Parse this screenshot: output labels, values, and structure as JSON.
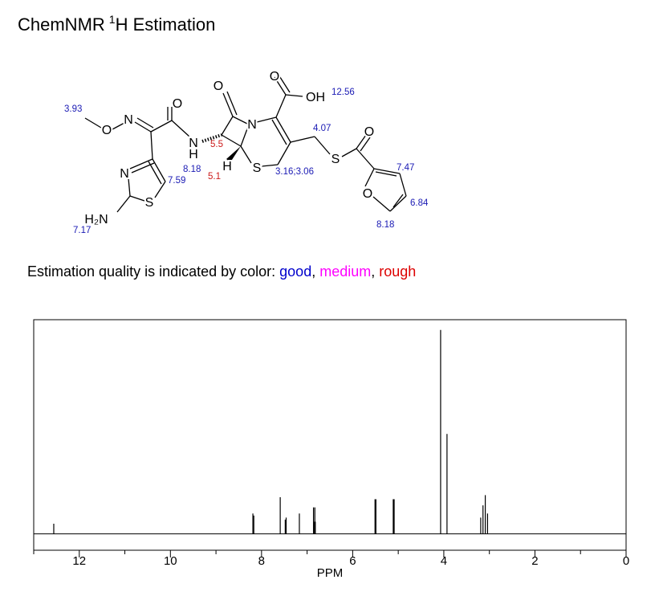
{
  "header": {
    "title": {
      "before": "ChemNMR",
      "superscript": "1",
      "after": "H Estimation"
    }
  },
  "molecule": {
    "atoms": [
      "O",
      "N",
      "O",
      "N",
      "H",
      "O",
      "N",
      "H",
      "S",
      "O",
      "OH",
      "S",
      "O",
      "O",
      "N",
      "S",
      "H₂N"
    ],
    "shifts": [
      {
        "text": "3.93",
        "color": "#1a1ab4"
      },
      {
        "text": "8.18",
        "color": "#1a1ab4"
      },
      {
        "text": "7.59",
        "color": "#1a1ab4"
      },
      {
        "text": "7.17",
        "color": "#1a1ab4"
      },
      {
        "text": "5.5",
        "color": "#cc1a1a"
      },
      {
        "text": "5.1",
        "color": "#cc1a1a"
      },
      {
        "text": "12.56",
        "color": "#1a1ab4"
      },
      {
        "text": "4.07",
        "color": "#1a1ab4"
      },
      {
        "text": "3.16;3.06",
        "color": "#1a1ab4"
      },
      {
        "text": "7.47",
        "color": "#1a1ab4"
      },
      {
        "text": "6.84",
        "color": "#1a1ab4"
      },
      {
        "text": "8.18",
        "color": "#1a1ab4"
      }
    ]
  },
  "quality": {
    "prefix": "Estimation quality is indicated by color:",
    "separator": ",",
    "levels": [
      {
        "text": "good",
        "color": "#0000cc"
      },
      {
        "text": "medium",
        "color": "#ff00ff"
      },
      {
        "text": "rough",
        "color": "#dd0000"
      }
    ]
  },
  "chart_data": {
    "type": "spectrum",
    "x_label": "PPM",
    "x": [
      12.56,
      8.19,
      8.17,
      7.59,
      7.48,
      7.46,
      7.17,
      6.86,
      6.85,
      6.83,
      6.82,
      5.51,
      5.49,
      5.11,
      5.09,
      4.07,
      3.93,
      3.19,
      3.14,
      3.09,
      3.04
    ],
    "values": [
      0.05,
      0.1,
      0.09,
      0.18,
      0.07,
      0.08,
      0.1,
      0.13,
      0.06,
      0.13,
      0.06,
      0.17,
      0.17,
      0.17,
      0.17,
      1.0,
      0.49,
      0.08,
      0.14,
      0.19,
      0.1
    ],
    "color": "#000000",
    "xlim": [
      13,
      0
    ],
    "ylim": [
      -0.08,
      1.05
    ],
    "xticks": [
      12,
      10,
      8,
      6,
      4,
      2,
      0
    ],
    "xminorticks": [
      13,
      11,
      9,
      7,
      5,
      3,
      1
    ]
  }
}
